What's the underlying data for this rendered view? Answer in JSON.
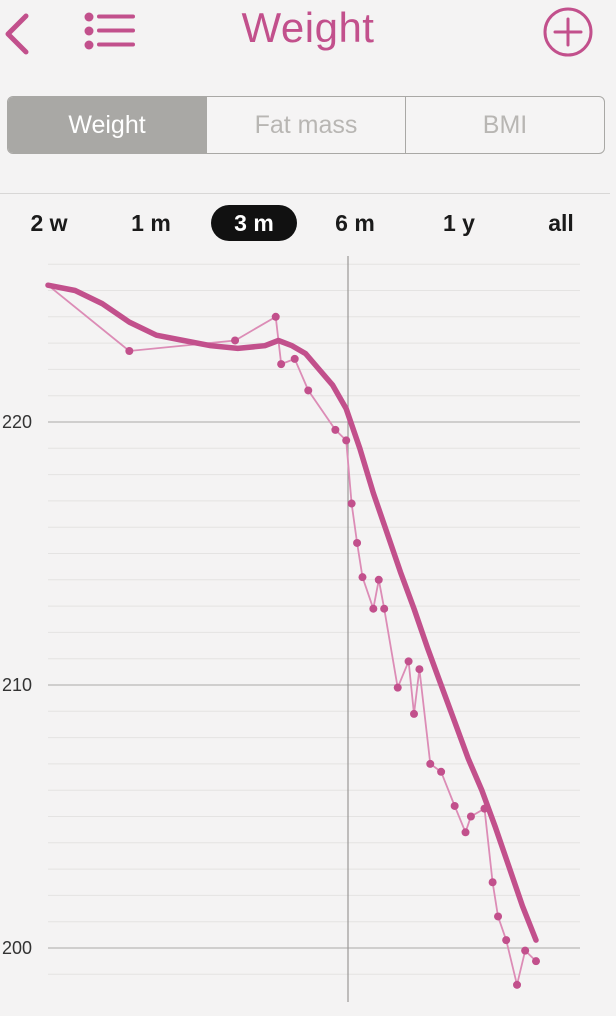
{
  "header": {
    "title": "Weight"
  },
  "tabs": [
    {
      "label": "Weight",
      "active": true
    },
    {
      "label": "Fat mass",
      "active": false
    },
    {
      "label": "BMI",
      "active": false
    }
  ],
  "ranges": [
    {
      "label": "2 w",
      "active": false
    },
    {
      "label": "1 m",
      "active": false
    },
    {
      "label": "3 m",
      "active": true
    },
    {
      "label": "6 m",
      "active": false
    },
    {
      "label": "1 y",
      "active": false
    },
    {
      "label": "all",
      "active": false
    }
  ],
  "colors": {
    "accent": "#c2508c",
    "thin_line": "#dc8cb6",
    "point": "#c2508c"
  },
  "chart_data": {
    "type": "line",
    "ylim": [
      196,
      225
    ],
    "yticks": [
      200,
      210,
      220
    ],
    "grid": true,
    "series": [
      {
        "kind": "measurements",
        "points": [
          [
            0.0,
            225.2
          ],
          [
            3.0,
            222.7
          ],
          [
            6.9,
            223.1
          ],
          [
            8.4,
            224.0
          ],
          [
            8.6,
            222.2
          ],
          [
            9.1,
            222.4
          ],
          [
            9.6,
            221.2
          ],
          [
            10.6,
            219.7
          ],
          [
            11.0,
            219.3
          ],
          [
            11.2,
            216.9
          ],
          [
            11.4,
            215.4
          ],
          [
            11.6,
            214.1
          ],
          [
            12.0,
            212.9
          ],
          [
            12.2,
            214.0
          ],
          [
            12.4,
            212.9
          ],
          [
            12.9,
            209.9
          ],
          [
            13.3,
            210.9
          ],
          [
            13.5,
            208.9
          ],
          [
            13.7,
            210.6
          ],
          [
            14.1,
            207.0
          ],
          [
            14.5,
            206.7
          ],
          [
            15.0,
            205.4
          ],
          [
            15.4,
            204.4
          ],
          [
            15.6,
            205.0
          ],
          [
            16.1,
            205.3
          ],
          [
            16.4,
            202.5
          ],
          [
            16.6,
            201.2
          ],
          [
            16.9,
            200.3
          ],
          [
            17.3,
            198.6
          ],
          [
            17.6,
            199.9
          ],
          [
            18.0,
            199.5
          ]
        ]
      },
      {
        "kind": "trend",
        "points": [
          [
            0.0,
            225.2
          ],
          [
            1.0,
            225.0
          ],
          [
            2.0,
            224.5
          ],
          [
            3.0,
            223.8
          ],
          [
            4.0,
            223.3
          ],
          [
            5.0,
            223.1
          ],
          [
            6.0,
            222.9
          ],
          [
            7.0,
            222.8
          ],
          [
            8.0,
            222.9
          ],
          [
            8.5,
            223.1
          ],
          [
            9.0,
            222.9
          ],
          [
            9.5,
            222.6
          ],
          [
            10.0,
            222.0
          ],
          [
            10.5,
            221.4
          ],
          [
            11.0,
            220.5
          ],
          [
            11.5,
            219.0
          ],
          [
            12.0,
            217.3
          ],
          [
            12.5,
            215.8
          ],
          [
            13.0,
            214.3
          ],
          [
            13.5,
            212.9
          ],
          [
            14.0,
            211.4
          ],
          [
            14.5,
            210.0
          ],
          [
            15.0,
            208.6
          ],
          [
            15.5,
            207.2
          ],
          [
            16.0,
            206.0
          ],
          [
            16.5,
            204.6
          ],
          [
            17.0,
            203.1
          ],
          [
            17.5,
            201.6
          ],
          [
            18.0,
            200.3
          ]
        ]
      }
    ]
  }
}
